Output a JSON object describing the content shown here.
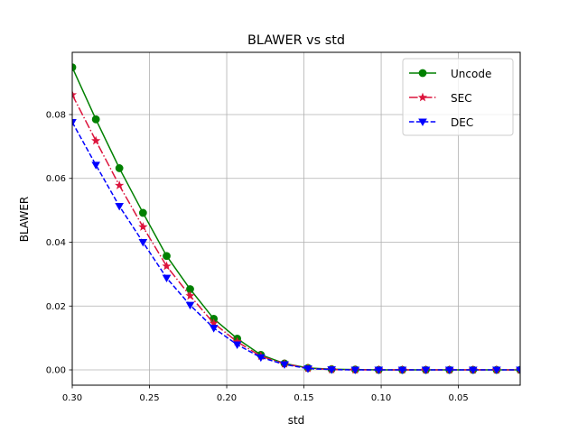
{
  "chart_data": {
    "type": "line",
    "title": "BLAWER vs std",
    "xlabel": "std",
    "ylabel": "BLAWER",
    "xlim": [
      0.3,
      0.01
    ],
    "ylim": [
      -0.0048,
      0.0995
    ],
    "x_ticks": [
      "0.30",
      "0.25",
      "0.20",
      "0.15",
      "0.10",
      "0.05"
    ],
    "x_tick_values": [
      0.3,
      0.25,
      0.2,
      0.15,
      0.1,
      0.05
    ],
    "y_ticks": [
      "0.00",
      "0.02",
      "0.04",
      "0.06",
      "0.08"
    ],
    "y_tick_values": [
      0.0,
      0.02,
      0.04,
      0.06,
      0.08
    ],
    "grid": true,
    "legend_position": "top-right",
    "x": [
      0.3,
      0.2847,
      0.2695,
      0.2542,
      0.2389,
      0.2237,
      0.2084,
      0.1932,
      0.1779,
      0.1626,
      0.1474,
      0.1321,
      0.1168,
      0.1016,
      0.0863,
      0.0711,
      0.0558,
      0.0405,
      0.0253,
      0.01
    ],
    "series": [
      {
        "name": "Uncode",
        "color": "#008000",
        "linestyle": "solid",
        "marker": "circle",
        "values": [
          0.0948,
          0.0785,
          0.0632,
          0.0492,
          0.0357,
          0.0253,
          0.016,
          0.0098,
          0.0047,
          0.002,
          0.0006,
          0.0002,
          0.0001,
          0.0,
          0.0,
          0.0,
          0.0,
          0.0,
          0.0,
          0.0
        ]
      },
      {
        "name": "SEC",
        "color": "#dc143c",
        "linestyle": "dashdot",
        "marker": "star",
        "values": [
          0.0862,
          0.0718,
          0.0578,
          0.0448,
          0.0325,
          0.0232,
          0.0146,
          0.0088,
          0.0043,
          0.0019,
          0.0005,
          0.0001,
          0.0,
          0.0,
          0.0,
          0.0,
          0.0,
          0.0,
          0.0,
          0.0
        ]
      },
      {
        "name": "DEC",
        "color": "#0000ff",
        "linestyle": "dashed",
        "marker": "triangle-down",
        "values": [
          0.0776,
          0.0642,
          0.0513,
          0.04,
          0.0288,
          0.0203,
          0.0131,
          0.0079,
          0.0039,
          0.0017,
          0.0004,
          0.0001,
          0.0,
          0.0,
          0.0,
          0.0,
          0.0,
          0.0,
          0.0,
          0.0
        ]
      }
    ]
  }
}
